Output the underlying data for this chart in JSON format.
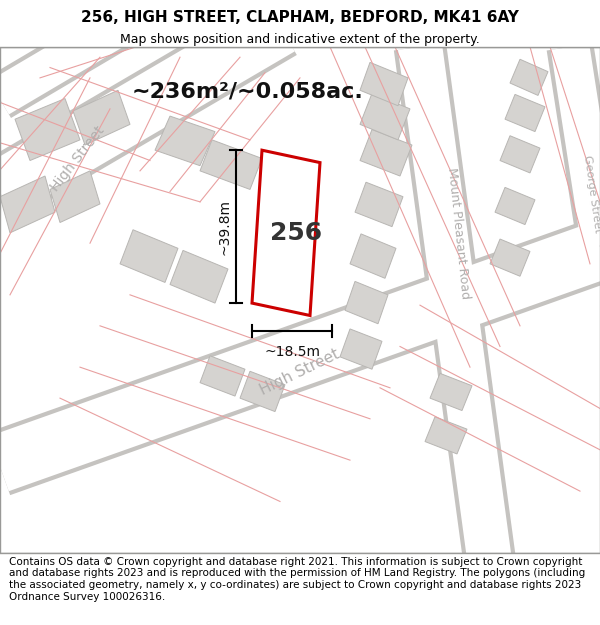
{
  "title_line1": "256, HIGH STREET, CLAPHAM, BEDFORD, MK41 6AY",
  "title_line2": "Map shows position and indicative extent of the property.",
  "footer_text": "Contains OS data © Crown copyright and database right 2021. This information is subject to Crown copyright and database rights 2023 and is reproduced with the permission of HM Land Registry. The polygons (including the associated geometry, namely x, y co-ordinates) are subject to Crown copyright and database rights 2023 Ordnance Survey 100026316.",
  "area_label": "~236m²/~0.058ac.",
  "width_label": "~18.5m",
  "height_label": "~39.8m",
  "plot_number": "256",
  "map_bg": "#f2f0ed",
  "building_color": "#d5d3d0",
  "building_edge": "#b8b6b3",
  "plot_fill": "#ffffff",
  "plot_edge": "#cc0000",
  "road_label_color": "#b0aead",
  "title_fontsize": 11,
  "subtitle_fontsize": 9,
  "footer_fontsize": 7.5
}
